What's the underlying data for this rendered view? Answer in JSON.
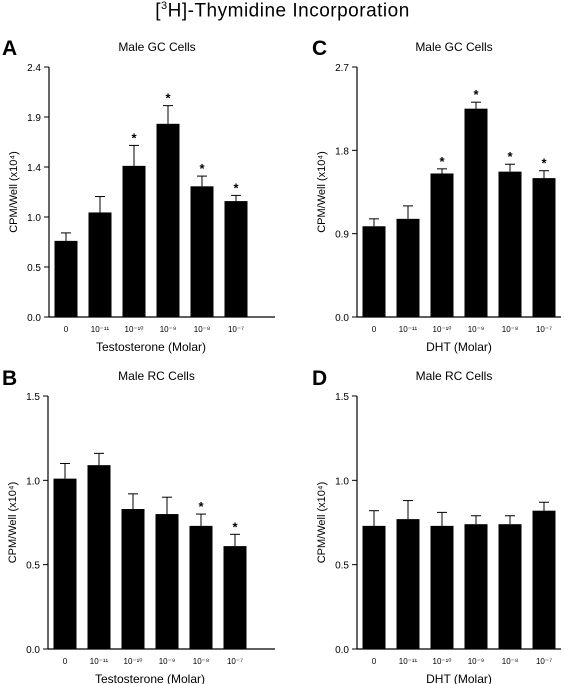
{
  "figure": {
    "title_prefix": "[",
    "title_sup": "3",
    "title_rest": "H]-Thymidine Incorporation"
  },
  "chart_data": [
    {
      "panel": "A",
      "type": "bar",
      "title": "Male GC Cells",
      "xlabel": "Testosterone (Molar)",
      "ylabel": "CPM/Well (x10⁴)",
      "ylim": [
        0,
        2.2
      ],
      "yticks": [
        "0.0",
        "0.5",
        "1.0",
        "1.4",
        "1.9",
        "2.4"
      ],
      "categories": [
        "0",
        "10⁻¹¹",
        "10⁻¹⁰",
        "10⁻⁹",
        "10⁻⁸",
        "10⁻⁷"
      ],
      "values": [
        0.67,
        0.92,
        1.33,
        1.7,
        1.15,
        1.02
      ],
      "errors": [
        0.07,
        0.14,
        0.18,
        0.16,
        0.09,
        0.05
      ],
      "significant": [
        false,
        false,
        true,
        true,
        true,
        true
      ]
    },
    {
      "panel": "C",
      "type": "bar",
      "title": "Male GC Cells",
      "xlabel": "DHT (Molar)",
      "ylabel": "CPM/Well (x10⁴)",
      "ylim": [
        0,
        2.7
      ],
      "yticks": [
        "0.0",
        "0.9",
        "1.8",
        "2.7"
      ],
      "categories": [
        "0",
        "10⁻¹¹",
        "10⁻¹⁰",
        "10⁻⁹",
        "10⁻⁸",
        "10⁻⁷"
      ],
      "values": [
        0.98,
        1.06,
        1.55,
        2.25,
        1.57,
        1.5
      ],
      "errors": [
        0.08,
        0.14,
        0.05,
        0.07,
        0.08,
        0.08
      ],
      "significant": [
        false,
        false,
        true,
        true,
        true,
        true
      ]
    },
    {
      "panel": "B",
      "type": "bar",
      "title": "Male RC Cells",
      "xlabel": "Testosterone (Molar)",
      "ylabel": "CPM/Well (x10⁴)",
      "ylim": [
        0,
        1.5
      ],
      "yticks": [
        "0.0",
        "0.5",
        "1.0",
        "1.5"
      ],
      "categories": [
        "0",
        "10⁻¹¹",
        "10⁻¹⁰",
        "10⁻⁹",
        "10⁻⁸",
        "10⁻⁷"
      ],
      "values": [
        1.01,
        1.09,
        0.83,
        0.8,
        0.73,
        0.61
      ],
      "errors": [
        0.09,
        0.07,
        0.09,
        0.1,
        0.07,
        0.07
      ],
      "significant": [
        false,
        false,
        false,
        false,
        true,
        true
      ]
    },
    {
      "panel": "D",
      "type": "bar",
      "title": "Male RC Cells",
      "xlabel": "DHT (Molar)",
      "ylabel": "CPM/Well (x10⁴)",
      "ylim": [
        0,
        1.5
      ],
      "yticks": [
        "0.0",
        "0.5",
        "1.0",
        "1.5"
      ],
      "categories": [
        "0",
        "10⁻¹¹",
        "10⁻¹⁰",
        "10⁻⁹",
        "10⁻⁸",
        "10⁻⁷"
      ],
      "values": [
        0.73,
        0.77,
        0.73,
        0.74,
        0.74,
        0.82
      ],
      "errors": [
        0.09,
        0.11,
        0.08,
        0.05,
        0.05,
        0.05
      ],
      "significant": [
        false,
        false,
        false,
        false,
        false,
        false
      ]
    }
  ],
  "marker": "*"
}
